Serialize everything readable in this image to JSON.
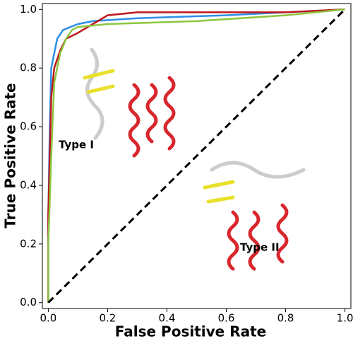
{
  "chart_data": {
    "type": "line",
    "xlabel": "False Positive Rate",
    "ylabel": "True Positive Rate",
    "xlim": [
      -0.02,
      1.02
    ],
    "ylim": [
      -0.02,
      1.02
    ],
    "xticks": [
      {
        "value": 0,
        "label": "0.0"
      },
      0.2,
      0.4,
      0.6,
      0.8,
      {
        "value": 1,
        "label": "1.0"
      }
    ],
    "yticks": [
      {
        "value": 0,
        "label": "0.0"
      },
      0.2,
      0.4,
      0.6,
      0.8,
      {
        "value": 1,
        "label": "1.0"
      }
    ],
    "series": [
      {
        "color": "#2e8fe8",
        "x": [
          0,
          0,
          0.005,
          0.01,
          0.02,
          0.03,
          0.05,
          0.1,
          0.15,
          0.3,
          0.6,
          0.8,
          1
        ],
        "values": [
          0,
          0.3,
          0.6,
          0.8,
          0.85,
          0.9,
          0.93,
          0.95,
          0.96,
          0.97,
          0.98,
          0.99,
          1
        ]
      },
      {
        "color": "#c0161b",
        "x": [
          0,
          0,
          0.01,
          0.02,
          0.04,
          0.06,
          0.1,
          0.15,
          0.2,
          0.3,
          0.5,
          0.8,
          1
        ],
        "values": [
          0,
          0.3,
          0.7,
          0.8,
          0.86,
          0.9,
          0.92,
          0.95,
          0.98,
          0.99,
          0.99,
          0.99,
          1
        ]
      },
      {
        "color": "#8cc63f",
        "x": [
          0,
          0,
          0.01,
          0.02,
          0.04,
          0.06,
          0.08,
          0.1,
          0.2,
          0.5,
          0.8,
          1
        ],
        "values": [
          0,
          0.2,
          0.5,
          0.75,
          0.85,
          0.9,
          0.93,
          0.94,
          0.95,
          0.96,
          0.98,
          1
        ]
      },
      {
        "color": "#000000",
        "dash": true,
        "x": [
          0,
          1
        ],
        "values": [
          0,
          1
        ]
      }
    ],
    "annotations": [
      "Type I",
      "Type II"
    ]
  }
}
